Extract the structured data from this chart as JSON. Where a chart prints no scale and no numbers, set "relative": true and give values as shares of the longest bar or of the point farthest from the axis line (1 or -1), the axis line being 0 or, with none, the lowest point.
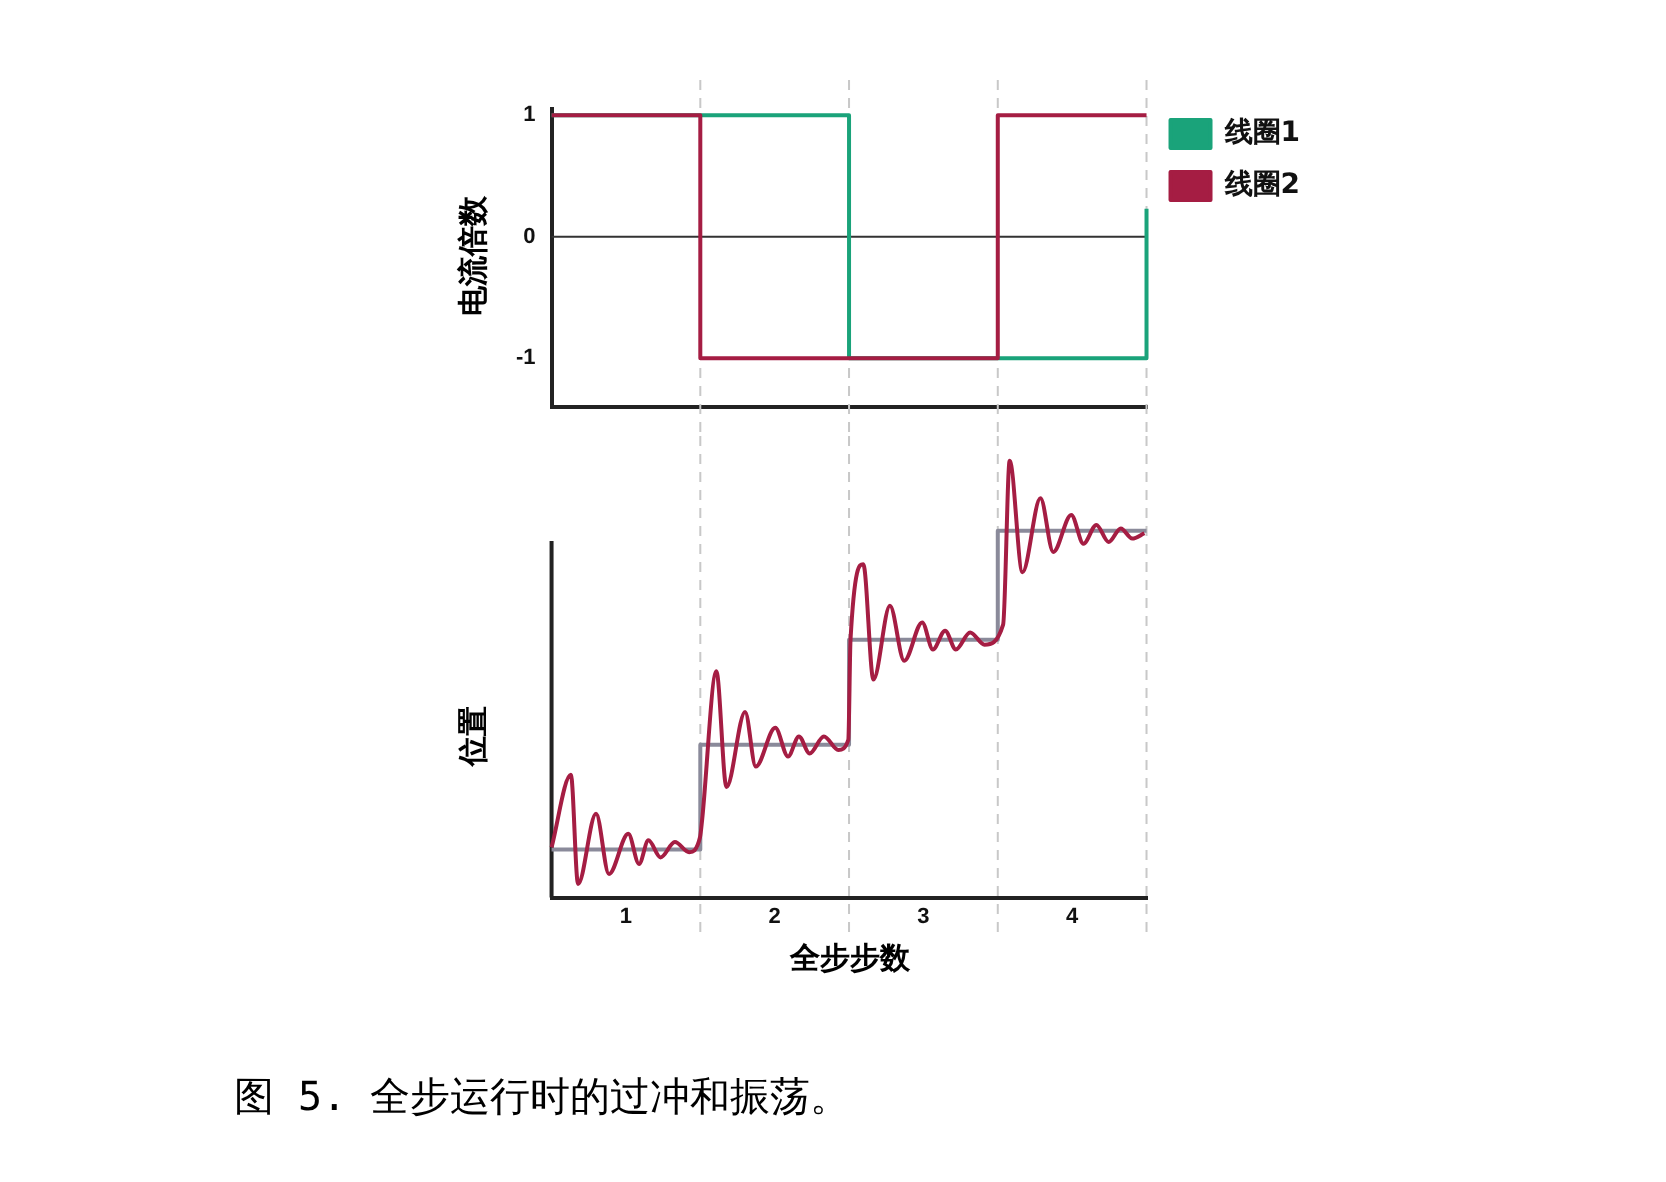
{
  "chart_data": [
    {
      "type": "line",
      "ylabel": "电流倍数",
      "xlim": [
        0,
        4
      ],
      "ylim": [
        -1.4,
        1.05
      ],
      "yticks": [
        -1,
        0,
        1
      ],
      "tick_labels": "y",
      "legend": "top right",
      "grid": false,
      "marker": "none",
      "series": [
        {
          "name": "线圈1",
          "color": "#1aa37a",
          "x": [
            0,
            2,
            2,
            4,
            4
          ],
          "values": [
            1,
            1,
            -1,
            -1,
            0.23
          ]
        },
        {
          "name": "线圈2",
          "color": "#a51d43",
          "x": [
            0,
            1,
            1,
            3,
            3,
            4
          ],
          "values": [
            1,
            1,
            -1,
            -1,
            1,
            1
          ]
        }
      ],
      "ref_lines": [
        {
          "axis": "y",
          "value": 0,
          "color": "#333333",
          "line_style": "solid"
        },
        {
          "axis": "x",
          "value": 1,
          "color": "#c8c8c8",
          "line_style": "dashed"
        },
        {
          "axis": "x",
          "value": 2,
          "color": "#c8c8c8",
          "line_style": "dashed"
        },
        {
          "axis": "x",
          "value": 3,
          "color": "#c8c8c8",
          "line_style": "dashed"
        },
        {
          "axis": "x",
          "value": 4,
          "color": "#c8c8c8",
          "line_style": "dashed"
        }
      ]
    },
    {
      "type": "line",
      "relative": true,
      "ylabel": "位置",
      "xlabel": "全步步数",
      "xlim": [
        0,
        4
      ],
      "xticks": [
        {
          "value": 0.5,
          "label": "1"
        },
        {
          "value": 1.5,
          "label": "2"
        },
        {
          "value": 2.5,
          "label": "3"
        },
        {
          "value": 3.5,
          "label": "4"
        }
      ],
      "legend": false,
      "grid": false,
      "marker": "none",
      "series": [
        {
          "color": "#8a8a9a",
          "x": [
            0,
            1,
            1,
            2,
            2,
            3,
            3,
            4
          ],
          "values": [
            0.11,
            0.11,
            0.35,
            0.35,
            0.59,
            0.59,
            0.84,
            0.84
          ]
        },
        {
          "color": "#a51d43",
          "x": [
            0,
            0.13,
            0.178,
            0.299,
            0.386,
            0.516,
            0.588,
            0.651,
            0.733,
            0.829,
            0.925,
            0.998,
            1.012,
            1.108,
            1.176,
            1.301,
            1.373,
            1.504,
            1.59,
            1.663,
            1.735,
            1.831,
            1.928,
            1.995,
            2.01,
            2.096,
            2.164,
            2.275,
            2.371,
            2.492,
            2.564,
            2.646,
            2.718,
            2.814,
            2.911,
            3.036,
            3.08,
            3.166,
            3.287,
            3.373,
            3.494,
            3.576,
            3.663,
            3.745,
            3.827,
            3.904,
            3.986
          ],
          "values": [
            0.115,
            0.281,
            0.031,
            0.192,
            0.054,
            0.146,
            0.077,
            0.131,
            0.092,
            0.127,
            0.104,
            0.138,
            0.177,
            0.518,
            0.253,
            0.425,
            0.3,
            0.389,
            0.323,
            0.369,
            0.33,
            0.369,
            0.338,
            0.361,
            0.591,
            0.763,
            0.499,
            0.668,
            0.542,
            0.63,
            0.568,
            0.611,
            0.568,
            0.607,
            0.579,
            0.625,
            1,
            0.745,
            0.914,
            0.791,
            0.876,
            0.81,
            0.853,
            0.814,
            0.845,
            0.822,
            0.834
          ]
        }
      ],
      "ref_lines": [
        {
          "axis": "x",
          "value": 1,
          "color": "#c8c8c8",
          "line_style": "dashed"
        },
        {
          "axis": "x",
          "value": 2,
          "color": "#c8c8c8",
          "line_style": "dashed"
        },
        {
          "axis": "x",
          "value": 3,
          "color": "#c8c8c8",
          "line_style": "dashed"
        },
        {
          "axis": "x",
          "value": 4,
          "color": "#c8c8c8",
          "line_style": "dashed"
        }
      ],
      "annotations": [
        "图 5. 全步运行时的过冲和振荡。"
      ]
    }
  ]
}
